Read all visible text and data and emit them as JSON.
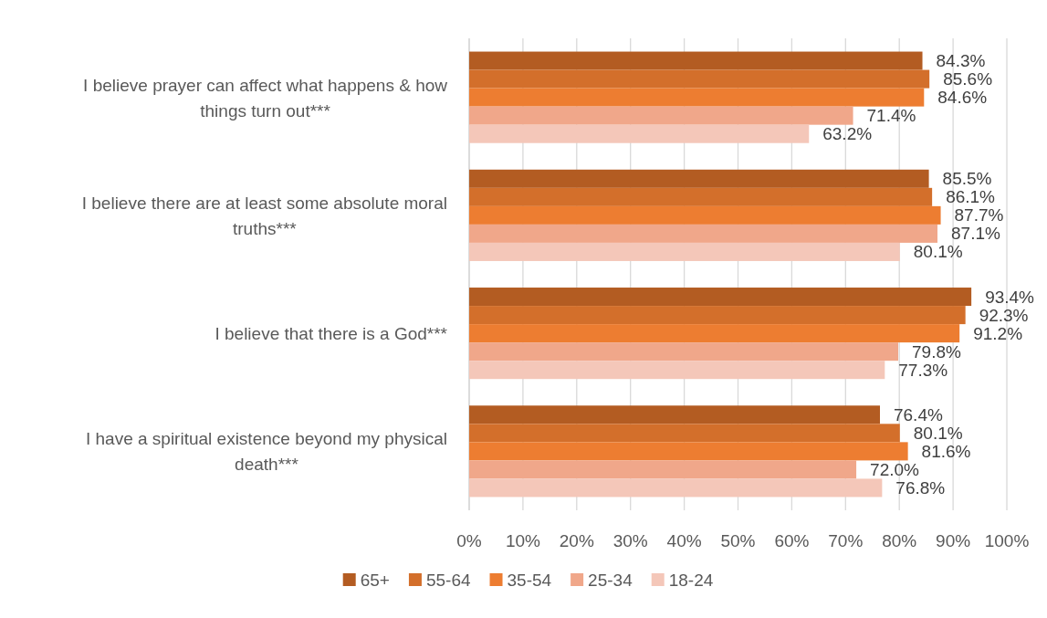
{
  "chart_data": {
    "type": "bar",
    "orientation": "horizontal",
    "categories": [
      "I believe prayer can affect what happens & how things turn out***",
      "I believe there are at least some absolute moral truths***",
      "I believe that there is a God***",
      "I have a spiritual existence beyond my physical death***"
    ],
    "series": [
      {
        "name": "65+",
        "color": "#b35c22",
        "values": [
          84.3,
          85.5,
          93.4,
          76.4
        ],
        "value_labels": [
          "84.3%",
          "85.5%",
          "93.4%",
          "76.4%"
        ]
      },
      {
        "name": "55-64",
        "color": "#d36f2b",
        "values": [
          85.6,
          86.1,
          92.3,
          80.1
        ],
        "value_labels": [
          "85.6%",
          "86.1%",
          "92.3%",
          "80.1%"
        ]
      },
      {
        "name": "35-54",
        "color": "#ed7d31",
        "values": [
          84.6,
          87.7,
          91.2,
          81.6
        ],
        "value_labels": [
          "84.6%",
          "87.7%",
          "91.2%",
          "81.6%"
        ]
      },
      {
        "name": "25-34",
        "color": "#f0a78a",
        "values": [
          71.4,
          87.1,
          79.8,
          72.0
        ],
        "value_labels": [
          "71.4%",
          "87.1%",
          "79.8%",
          "72.0%"
        ]
      },
      {
        "name": "18-24",
        "color": "#f4c7b9",
        "values": [
          63.2,
          80.1,
          77.3,
          76.8
        ],
        "value_labels": [
          "63.2%",
          "80.1%",
          "77.3%",
          "76.8%"
        ]
      }
    ],
    "xlim": [
      0,
      100
    ],
    "xticks": [
      {
        "value": 0,
        "label": "0%"
      },
      {
        "value": 10,
        "label": "10%"
      },
      {
        "value": 20,
        "label": "20%"
      },
      {
        "value": 30,
        "label": "30%"
      },
      {
        "value": 40,
        "label": "40%"
      },
      {
        "value": 50,
        "label": "50%"
      },
      {
        "value": 60,
        "label": "60%"
      },
      {
        "value": 70,
        "label": "70%"
      },
      {
        "value": 80,
        "label": "80%"
      },
      {
        "value": 90,
        "label": "90%"
      },
      {
        "value": 100,
        "label": "100%"
      }
    ],
    "grid": "x",
    "legend": "bottom"
  }
}
